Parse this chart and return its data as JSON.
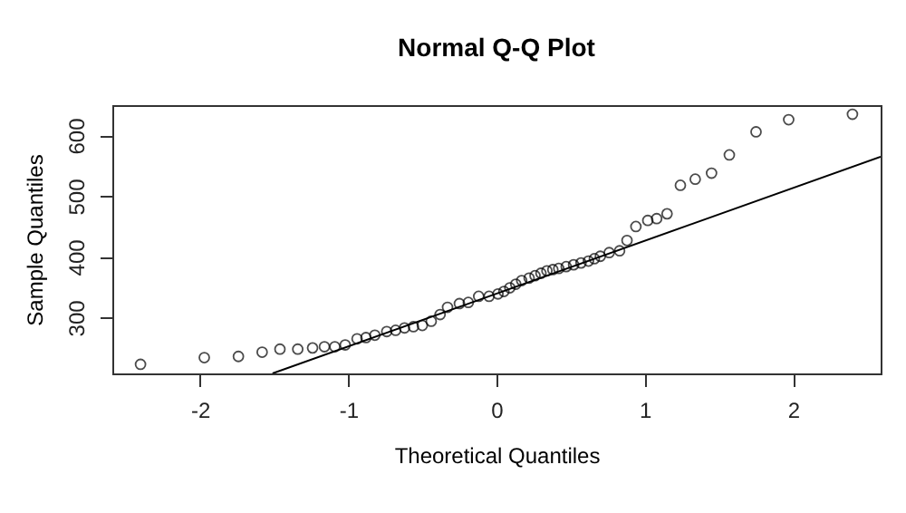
{
  "chart_data": {
    "type": "scatter",
    "title": "Normal Q-Q Plot",
    "xlabel": "Theoretical Quantiles",
    "ylabel": "Sample Quantiles",
    "xlim": [
      -2.59,
      2.59
    ],
    "ylim": [
      208,
      650
    ],
    "xticks": [
      -2,
      -1,
      0,
      1,
      2
    ],
    "yticks": [
      300,
      400,
      500,
      600
    ],
    "grid": false,
    "marker": "circle",
    "series": [
      {
        "color": "#000000",
        "x": [
          -2.4,
          -1.97,
          -1.74,
          -1.58,
          -1.46,
          -1.34,
          -1.24,
          -1.16,
          -1.09,
          -1.02,
          -0.94,
          -0.88,
          -0.82,
          -0.74,
          -0.68,
          -0.62,
          -0.56,
          -0.5,
          -0.44,
          -0.38,
          -0.33,
          -0.25,
          -0.19,
          -0.12,
          -0.05,
          0.01,
          0.05,
          0.09,
          0.13,
          0.17,
          0.22,
          0.26,
          0.3,
          0.34,
          0.38,
          0.42,
          0.47,
          0.52,
          0.57,
          0.62,
          0.66,
          0.7,
          0.76,
          0.83,
          0.88,
          0.94,
          1.02,
          1.08,
          1.15,
          1.24,
          1.34,
          1.45,
          1.57,
          1.75,
          1.97,
          2.4
        ],
        "values": [
          223,
          234,
          236,
          243,
          248,
          248,
          250,
          252,
          252,
          255,
          265,
          267,
          271,
          277,
          279,
          283,
          285,
          287,
          294,
          305,
          317,
          323,
          325,
          335,
          335,
          339,
          343,
          349,
          355,
          361,
          365,
          369,
          373,
          377,
          379,
          381,
          384,
          387,
          390,
          393,
          397,
          401,
          407,
          410,
          427,
          450,
          460,
          463,
          471,
          518,
          528,
          538,
          568,
          606,
          626,
          635
        ]
      },
      {
        "type": "line",
        "marker": "none",
        "color": "#000000",
        "x": [
          -1.51,
          2.59
        ],
        "values": [
          208,
          565
        ]
      }
    ]
  }
}
